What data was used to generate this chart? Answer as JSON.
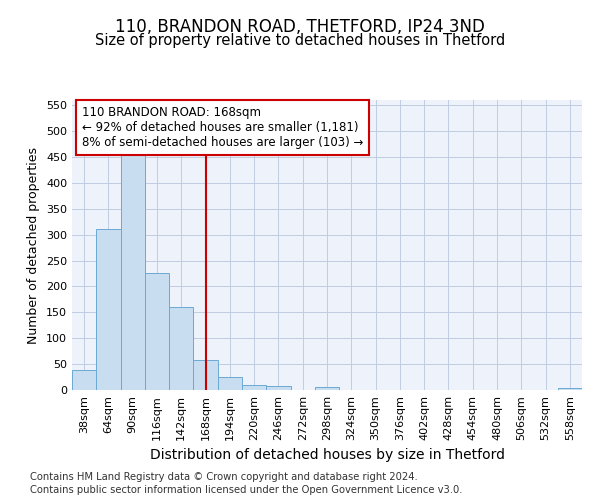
{
  "title1": "110, BRANDON ROAD, THETFORD, IP24 3ND",
  "title2": "Size of property relative to detached houses in Thetford",
  "xlabel": "Distribution of detached houses by size in Thetford",
  "ylabel": "Number of detached properties",
  "footnote1": "Contains HM Land Registry data © Crown copyright and database right 2024.",
  "footnote2": "Contains public sector information licensed under the Open Government Licence v3.0.",
  "bin_labels": [
    "38sqm",
    "64sqm",
    "90sqm",
    "116sqm",
    "142sqm",
    "168sqm",
    "194sqm",
    "220sqm",
    "246sqm",
    "272sqm",
    "298sqm",
    "324sqm",
    "350sqm",
    "376sqm",
    "402sqm",
    "428sqm",
    "454sqm",
    "480sqm",
    "506sqm",
    "532sqm",
    "558sqm"
  ],
  "bar_values": [
    38,
    311,
    455,
    226,
    160,
    57,
    25,
    10,
    8,
    0,
    6,
    0,
    0,
    0,
    0,
    0,
    0,
    0,
    0,
    0,
    4
  ],
  "bar_color": "#c9ddf0",
  "bar_edge_color": "#6aaad4",
  "vline_index": 5,
  "vline_color": "#cc0000",
  "annotation_line1": "110 BRANDON ROAD: 168sqm",
  "annotation_line2": "← 92% of detached houses are smaller (1,181)",
  "annotation_line3": "8% of semi-detached houses are larger (103) →",
  "annotation_box_color": "#cc0000",
  "ylim": [
    0,
    560
  ],
  "yticks": [
    0,
    50,
    100,
    150,
    200,
    250,
    300,
    350,
    400,
    450,
    500,
    550
  ],
  "bg_color": "#eef2fa",
  "grid_color": "#c0cce0",
  "title1_fontsize": 12,
  "title2_fontsize": 10.5,
  "xlabel_fontsize": 10,
  "ylabel_fontsize": 9,
  "tick_fontsize": 8,
  "footnote_fontsize": 7.2,
  "annotation_fontsize": 8.5
}
